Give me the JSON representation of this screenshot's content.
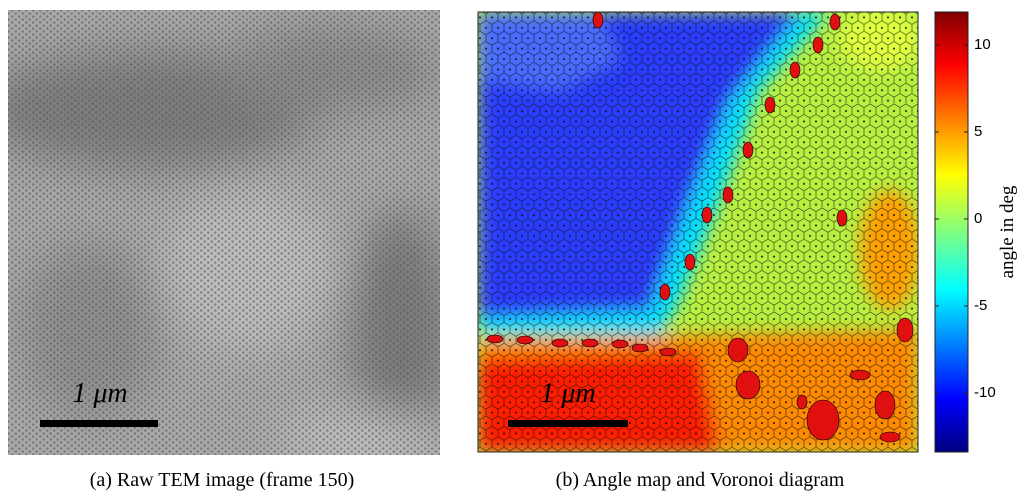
{
  "panels": [
    {
      "caption": "(a) Raw TEM image (frame 150)",
      "scale_bar": "1 μm"
    },
    {
      "caption": "(b) Angle map and Voronoi diagram",
      "scale_bar": "1 μm",
      "colorbar": {
        "label": "angle in deg",
        "lim": [
          -13.4,
          11.9
        ],
        "ticks": [
          10,
          5,
          0,
          -5,
          -10
        ]
      }
    }
  ]
}
